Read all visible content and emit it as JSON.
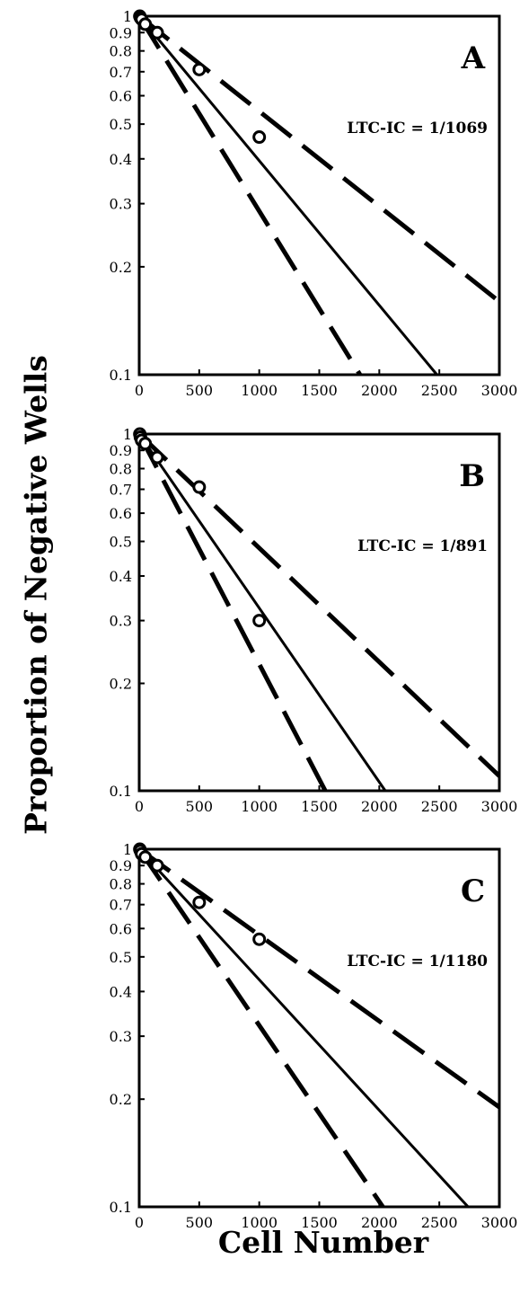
{
  "chart_data": [
    {
      "type": "scatter",
      "panel_label": "A",
      "annotation": "LTC-IC = 1/1069",
      "x_ticks": [
        "0",
        "500",
        "1000",
        "1500",
        "2000",
        "2500",
        "3000"
      ],
      "y_ticks": [
        "0.1",
        "0.2",
        "0.3",
        "0.4",
        "0.5",
        "0.6",
        "0.7",
        "0.8",
        "0.9",
        "1"
      ],
      "xlim": [
        0,
        3000
      ],
      "ylim": [
        0.1,
        1
      ],
      "y_scale": "log",
      "points": [
        {
          "x": 5,
          "y": 1.0
        },
        {
          "x": 10,
          "y": 0.99
        },
        {
          "x": 20,
          "y": 0.98
        },
        {
          "x": 50,
          "y": 0.95
        },
        {
          "x": 150,
          "y": 0.9
        },
        {
          "x": 500,
          "y": 0.71
        },
        {
          "x": 1000,
          "y": 0.46
        }
      ],
      "lines": [
        {
          "style": "dashed",
          "x": [
            0,
            3000
          ],
          "y": [
            1.0,
            0.16
          ]
        },
        {
          "style": "solid",
          "x": [
            0,
            2480
          ],
          "y": [
            1.0,
            0.1
          ]
        },
        {
          "style": "dashed",
          "x": [
            0,
            1840
          ],
          "y": [
            1.0,
            0.1
          ]
        }
      ]
    },
    {
      "type": "scatter",
      "panel_label": "B",
      "annotation": "LTC-IC = 1/891",
      "x_ticks": [
        "0",
        "500",
        "1000",
        "1500",
        "2000",
        "2500",
        "3000"
      ],
      "y_ticks": [
        "0.1",
        "0.2",
        "0.3",
        "0.4",
        "0.5",
        "0.6",
        "0.7",
        "0.8",
        "0.9",
        "1"
      ],
      "xlim": [
        0,
        3000
      ],
      "ylim": [
        0.1,
        1
      ],
      "y_scale": "log",
      "points": [
        {
          "x": 5,
          "y": 1.0
        },
        {
          "x": 10,
          "y": 0.98
        },
        {
          "x": 20,
          "y": 0.96
        },
        {
          "x": 50,
          "y": 0.94
        },
        {
          "x": 150,
          "y": 0.86
        },
        {
          "x": 500,
          "y": 0.71
        },
        {
          "x": 1000,
          "y": 0.3
        }
      ],
      "lines": [
        {
          "style": "dashed",
          "x": [
            0,
            3000
          ],
          "y": [
            1.0,
            0.11
          ]
        },
        {
          "style": "solid",
          "x": [
            0,
            2050
          ],
          "y": [
            1.0,
            0.1
          ]
        },
        {
          "style": "dashed",
          "x": [
            0,
            1550
          ],
          "y": [
            1.0,
            0.1
          ]
        }
      ]
    },
    {
      "type": "scatter",
      "panel_label": "C",
      "annotation": "LTC-IC = 1/1180",
      "x_ticks": [
        "0",
        "500",
        "1000",
        "1500",
        "2000",
        "2500",
        "3000"
      ],
      "y_ticks": [
        "0.1",
        "0.2",
        "0.3",
        "0.4",
        "0.5",
        "0.6",
        "0.7",
        "0.8",
        "0.9",
        "1"
      ],
      "xlim": [
        0,
        3000
      ],
      "ylim": [
        0.1,
        1
      ],
      "y_scale": "log",
      "points": [
        {
          "x": 5,
          "y": 1.0
        },
        {
          "x": 10,
          "y": 0.99
        },
        {
          "x": 20,
          "y": 0.97
        },
        {
          "x": 50,
          "y": 0.95
        },
        {
          "x": 150,
          "y": 0.9
        },
        {
          "x": 500,
          "y": 0.71
        },
        {
          "x": 1000,
          "y": 0.56
        }
      ],
      "lines": [
        {
          "style": "dashed",
          "x": [
            0,
            3000
          ],
          "y": [
            1.0,
            0.19
          ]
        },
        {
          "style": "solid",
          "x": [
            0,
            2740
          ],
          "y": [
            1.0,
            0.1
          ]
        },
        {
          "style": "dashed",
          "x": [
            0,
            2030
          ],
          "y": [
            1.0,
            0.1
          ]
        }
      ]
    }
  ],
  "axes": {
    "ylabel": "Proportion of Negative Wells",
    "xlabel": "Cell Number"
  }
}
